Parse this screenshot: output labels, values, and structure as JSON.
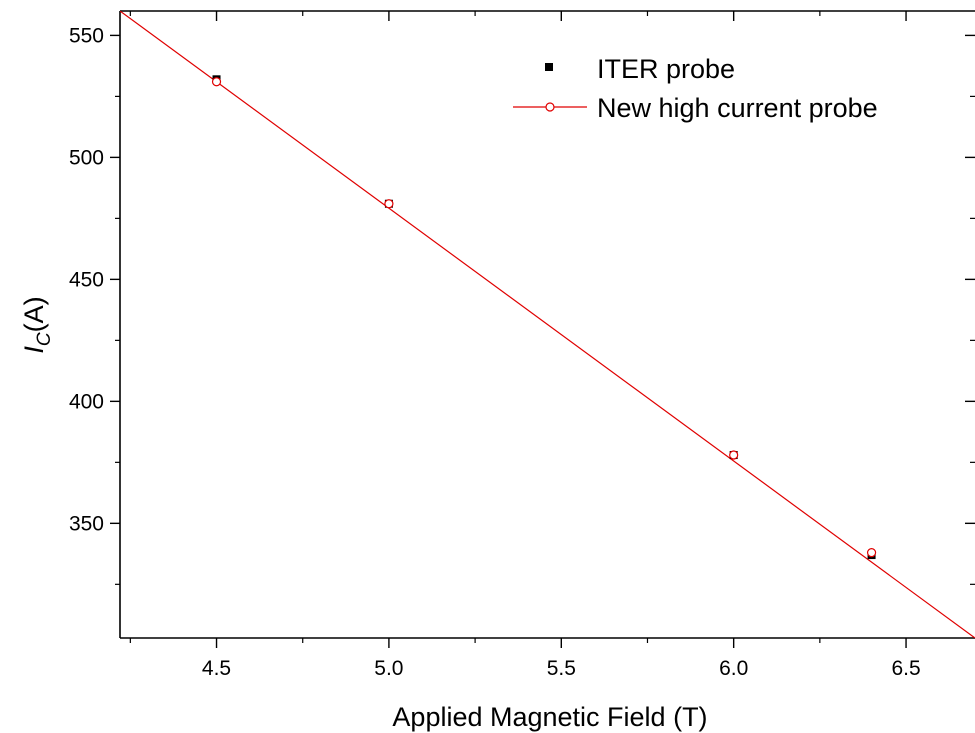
{
  "chart_data": {
    "type": "scatter",
    "xlabel": "Applied Magnetic Field (T)",
    "ylabel": {
      "symbol": "I",
      "subscript": "C",
      "unit": "(A)"
    },
    "xlim": [
      4.22,
      6.7
    ],
    "ylim": [
      303,
      560
    ],
    "x_ticks": [
      4.5,
      5.0,
      5.5,
      6.0,
      6.5
    ],
    "x_tick_labels": [
      "4.5",
      "5.0",
      "5.5",
      "6.0",
      "6.5"
    ],
    "y_ticks": [
      350,
      400,
      450,
      500,
      550
    ],
    "y_tick_labels": [
      "350",
      "400",
      "450",
      "500",
      "550"
    ],
    "grid": false,
    "legend_position": "top-right",
    "series": [
      {
        "name": "ITER probe",
        "marker": "filled-square",
        "color": "#000000",
        "line": false,
        "x": [
          4.5,
          5.0,
          6.0,
          6.4
        ],
        "y": [
          532,
          481,
          378,
          337
        ]
      },
      {
        "name": "New high current probe",
        "marker": "open-circle",
        "color": "#e00000",
        "line": true,
        "x": [
          4.5,
          5.0,
          6.0,
          6.4
        ],
        "y": [
          531,
          481,
          378,
          338
        ]
      }
    ],
    "fit_line": {
      "color": "#e00000",
      "x": [
        4.22,
        6.7
      ],
      "y": [
        560,
        303
      ]
    }
  }
}
